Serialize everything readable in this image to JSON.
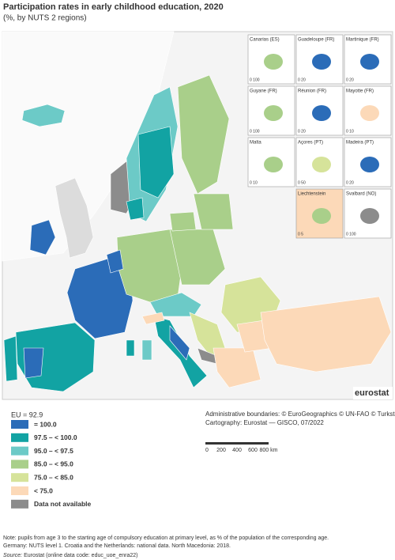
{
  "header": {
    "title": "Participation rates in early childhood education, 2020",
    "subtitle": "(%, by NUTS 2 regions)"
  },
  "insets": [
    {
      "name": "Canarias (ES)",
      "scale": "0 100"
    },
    {
      "name": "Guadeloupe (FR)",
      "scale": "0 20"
    },
    {
      "name": "Martinique (FR)",
      "scale": "0 20"
    },
    {
      "name": "Guyane (FR)",
      "scale": "0 100"
    },
    {
      "name": "Réunion (FR)",
      "scale": "0 20"
    },
    {
      "name": "Mayotte (FR)",
      "scale": "0 10"
    },
    {
      "name": "Malta",
      "scale": "0 10"
    },
    {
      "name": "Açores (PT)",
      "scale": "0 50"
    },
    {
      "name": "Madeira (PT)",
      "scale": "0 20"
    },
    {
      "name": "Liechtenstein",
      "scale": "0 5"
    },
    {
      "name": "Svalbard (NO)",
      "scale": "0 100"
    }
  ],
  "logo": "eurostat",
  "legend": {
    "eu": "EU = 92.9",
    "classes": [
      {
        "label": "= 100.0",
        "color": "#2b6cb8"
      },
      {
        "label": "97.5 – < 100.0",
        "color": "#12a3a3"
      },
      {
        "label": "95.0 – < 97.5",
        "color": "#6ccac7"
      },
      {
        "label": "85.0 – < 95.0",
        "color": "#a9cf8a"
      },
      {
        "label": "75.0 – < 85.0",
        "color": "#d6e39a"
      },
      {
        "label": "< 75.0",
        "color": "#fcd9b8"
      },
      {
        "label": "Data not available",
        "color": "#8c8c8c"
      }
    ]
  },
  "credits": [
    "Administrative boundaries: © EuroGeographics © UN-FAO © Turkstat",
    "Cartography: Eurostat — GISCO, 07/2022"
  ],
  "scale_bar": [
    "0",
    "200",
    "400",
    "600",
    "800 km"
  ],
  "note": [
    "Note: pupils from age 3 to the starting age of compulsory education at primary level, as % of the population of the corresponding age.",
    "Germany: NUTS level 1. Croatia and the Netherlands: national data. North Macedonia: 2018."
  ],
  "source": {
    "label": "Source:",
    "text": " Eurostat (online data code: educ_uoe_enra22)"
  }
}
